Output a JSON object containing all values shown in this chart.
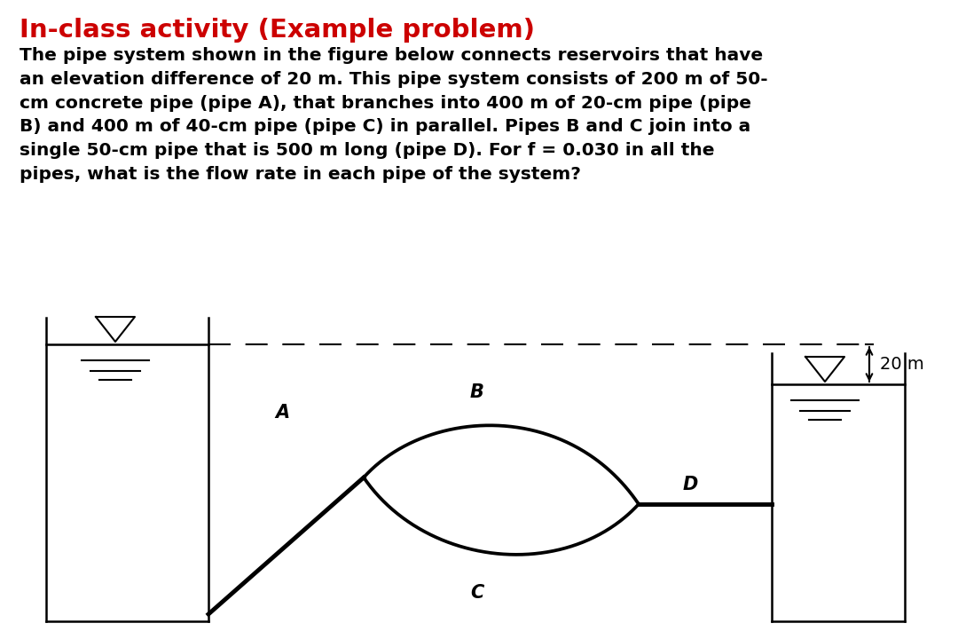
{
  "title": "In-class activity (Example problem)",
  "title_color": "#cc0000",
  "title_fontsize": 21,
  "body_text": "The pipe system shown in the figure below connects reservoirs that have\nan elevation difference of 20 m. This pipe system consists of 200 m of 50-\ncm concrete pipe (pipe A), that branches into 400 m of 20-cm pipe (pipe\nB) and 400 m of 40-cm pipe (pipe C) in parallel. Pipes B and C join into a\nsingle 50-cm pipe that is 500 m long (pipe D). For f = 0.030 in all the\npipes, what is the flow rate in each pipe of the system?",
  "body_fontsize": 14.5,
  "background_color": "#ffffff",
  "diagram_label_A": "A",
  "diagram_label_B": "B",
  "diagram_label_C": "C",
  "diagram_label_D": "D",
  "elevation_label": "20 m"
}
